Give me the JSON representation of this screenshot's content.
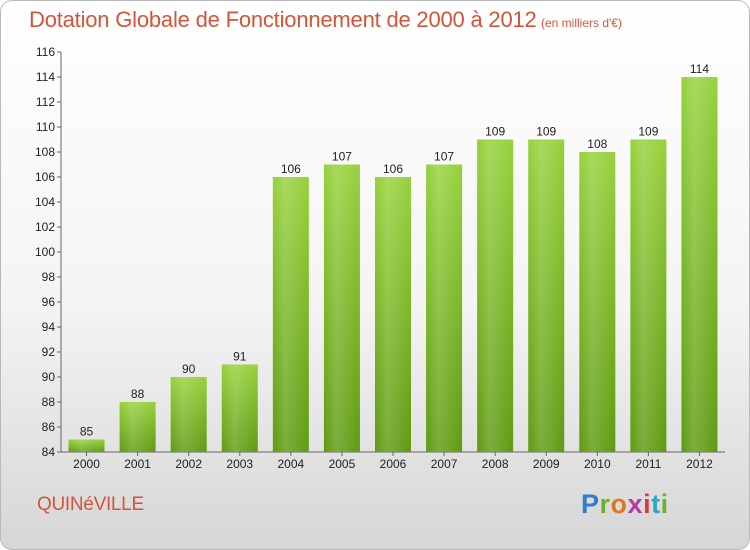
{
  "chart_data": {
    "type": "bar",
    "title": "Dotation Globale de Fonctionnement de 2000 à 2012",
    "subtitle": "(en milliers d'€)",
    "categories": [
      "2000",
      "2001",
      "2002",
      "2003",
      "2004",
      "2005",
      "2006",
      "2007",
      "2008",
      "2009",
      "2010",
      "2011",
      "2012"
    ],
    "values": [
      85,
      88,
      90,
      91,
      106,
      107,
      106,
      107,
      109,
      109,
      108,
      109,
      114
    ],
    "ylim": [
      84,
      116
    ],
    "yticks": [
      84,
      86,
      88,
      90,
      92,
      94,
      96,
      98,
      100,
      102,
      104,
      106,
      108,
      110,
      112,
      114,
      116
    ],
    "grid": false,
    "bar_color": "#7dc02f",
    "xlabel": "",
    "ylabel": ""
  },
  "commune": "QUINéVILLE",
  "logo": {
    "letters": [
      "P",
      "r",
      "o",
      "x",
      "i",
      "t",
      "i"
    ]
  }
}
